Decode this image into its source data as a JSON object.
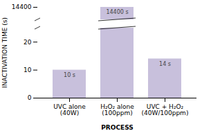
{
  "chart_data": {
    "type": "bar",
    "categories": [
      "UVC alone\n(40W)",
      "H₂O₂ alone\n(100ppm)",
      "UVC + H₂O₂\n(40W/100ppm)"
    ],
    "values": [
      10,
      14400,
      14
    ],
    "value_labels": [
      "10 s",
      "14400 s",
      "14 s"
    ],
    "data_labels": true,
    "color": "#c8c0dc",
    "xlabel": "PROCESS",
    "ylabel": "INACTIVATION TIME (s)",
    "ylim": [
      0,
      14400
    ],
    "yticks": [
      0,
      10,
      20,
      14400
    ]
  }
}
